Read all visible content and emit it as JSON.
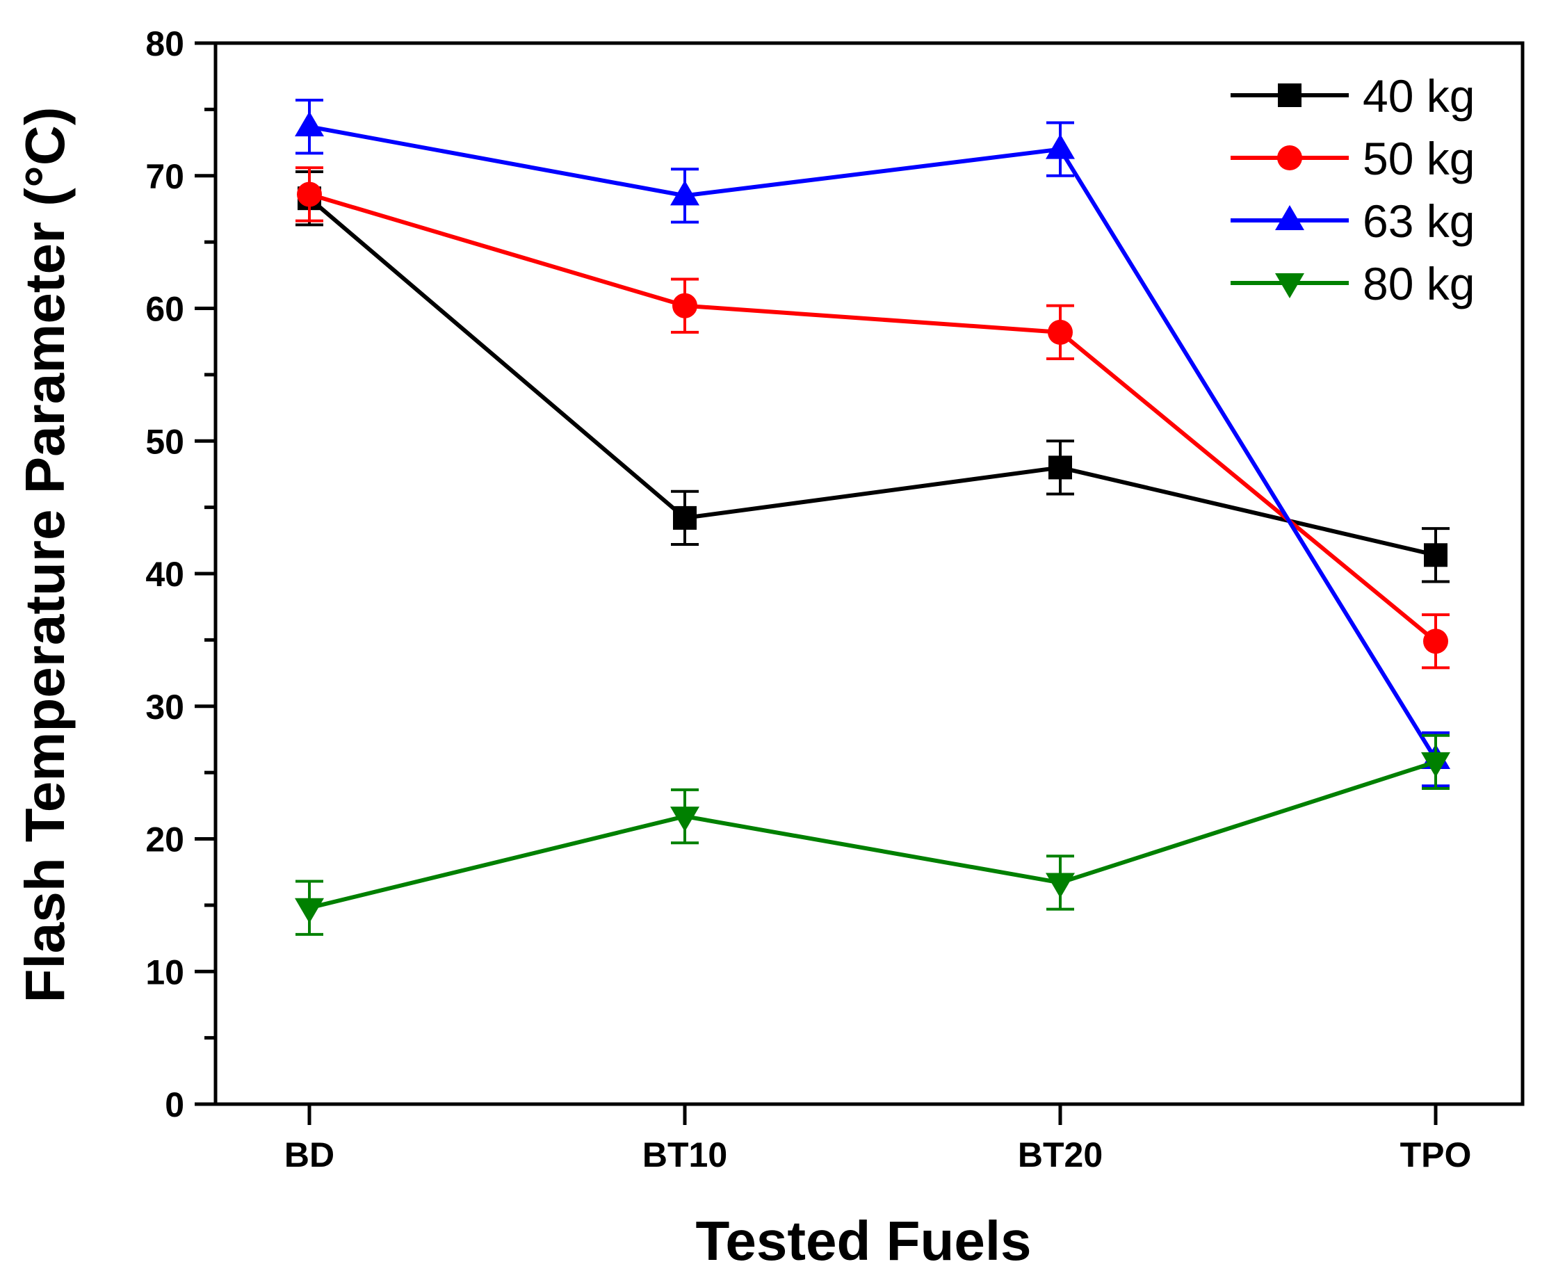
{
  "chart_data": {
    "type": "line",
    "title": "",
    "xlabel": "Tested Fuels",
    "ylabel": "Flash Temperature Parameter (°C)",
    "categories": [
      "BD",
      "BT10",
      "BT20",
      "TPO"
    ],
    "ylim": [
      0,
      80
    ],
    "yticks": [
      0,
      10,
      20,
      30,
      40,
      50,
      60,
      70,
      80
    ],
    "grid": false,
    "legend_position": "top-right",
    "series": [
      {
        "name": "40 kg",
        "color": "#000000",
        "marker": "square",
        "values": [
          68.3,
          44.2,
          48.0,
          41.4
        ],
        "errors": [
          2.0,
          2.0,
          2.0,
          2.0
        ]
      },
      {
        "name": "50 kg",
        "color": "#ff0000",
        "marker": "circle",
        "values": [
          68.6,
          60.2,
          58.2,
          34.9
        ],
        "errors": [
          2.0,
          2.0,
          2.0,
          2.0
        ]
      },
      {
        "name": "63 kg",
        "color": "#0000ff",
        "marker": "triangle-up",
        "values": [
          73.7,
          68.5,
          72.0,
          26.0
        ],
        "errors": [
          2.0,
          2.0,
          2.0,
          2.0
        ]
      },
      {
        "name": "80 kg",
        "color": "#008000",
        "marker": "triangle-down",
        "values": [
          14.8,
          21.7,
          16.7,
          25.8
        ],
        "errors": [
          2.0,
          2.0,
          2.0,
          2.0
        ]
      }
    ]
  }
}
